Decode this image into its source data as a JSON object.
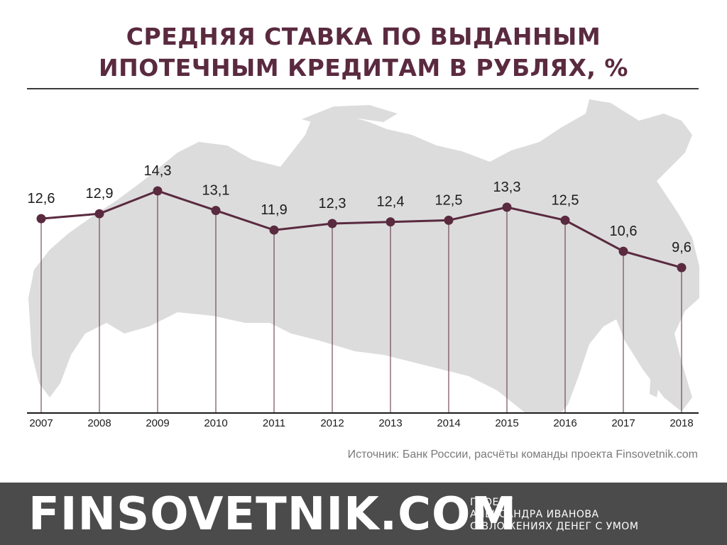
{
  "title": {
    "line1": "СРЕДНЯЯ СТАВКА ПО ВЫДАННЫМ",
    "line2": "ИПОТЕЧНЫМ КРЕДИТАМ В РУБЛЯХ, %"
  },
  "source": "Источник: Банк России, расчёты команды проекта Finsovetnik.com",
  "footer": {
    "brand": "FINSOVETNIK.COM",
    "tagline_1": "ПРОЕКТ",
    "tagline_2": "АЛЕКСАНДРА ИВАНОВА",
    "tagline_3": "О ВЛОЖЕНИЯХ ДЕНЕГ С УМОМ"
  },
  "colors": {
    "line": "#5a2a3f",
    "title": "#5a2a3f",
    "map": "#dcdcdc",
    "footer": "#4b4b4b"
  },
  "chart_data": {
    "type": "line",
    "title": "СРЕДНЯЯ СТАВКА ПО ВЫДАННЫМ ИПОТЕЧНЫМ КРЕДИТАМ В РУБЛЯХ, %",
    "categories": [
      "2007",
      "2008",
      "2009",
      "2010",
      "2011",
      "2012",
      "2013",
      "2014",
      "2015",
      "2016",
      "2017",
      "2018"
    ],
    "values": [
      12.6,
      12.9,
      14.3,
      13.1,
      11.9,
      12.3,
      12.4,
      12.5,
      13.3,
      12.5,
      10.6,
      9.6
    ],
    "data_labels": [
      "12,6",
      "12,9",
      "14,3",
      "13,1",
      "11,9",
      "12,3",
      "12,4",
      "12,5",
      "13,3",
      "12,5",
      "10,6",
      "9,6"
    ],
    "xlabel": "",
    "ylabel": "",
    "background": "map-of-russia",
    "grid": false,
    "legend": "none"
  }
}
